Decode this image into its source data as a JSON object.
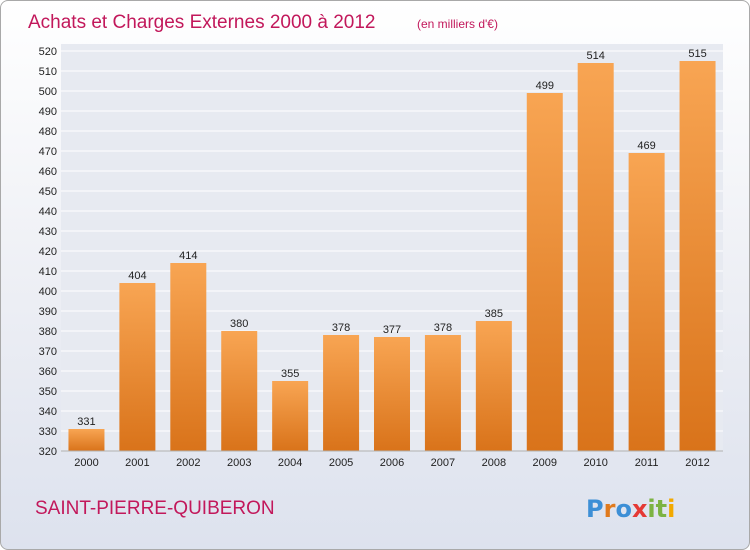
{
  "colors": {
    "title": "#c2185b",
    "bar_light": "#f8a553",
    "bar_dark": "#d9731a",
    "grid": "#ffffff",
    "plot_bg": "#e7eaf1",
    "logo_letters": [
      "#3d8fd6",
      "#e07a1d",
      "#3d8fd6",
      "#e53935",
      "#7cb342",
      "#7cb342",
      "#f2a900"
    ]
  },
  "chart_data": {
    "type": "bar",
    "title": "Achats et Charges Externes 2000 à 2012",
    "subtitle": "(en milliers d'€)",
    "categories": [
      "2000",
      "2001",
      "2002",
      "2003",
      "2004",
      "2005",
      "2006",
      "2007",
      "2008",
      "2009",
      "2010",
      "2011",
      "2012"
    ],
    "values": [
      331,
      404,
      414,
      380,
      355,
      378,
      377,
      378,
      385,
      499,
      514,
      469,
      515
    ],
    "value_labels": [
      "331",
      "404",
      "414",
      "380",
      "355",
      "378",
      "377",
      "378",
      "385",
      "499",
      "514",
      "469",
      "515"
    ],
    "ylim": [
      320,
      520
    ],
    "yticks": [
      "320",
      "330",
      "340",
      "350",
      "360",
      "370",
      "380",
      "390",
      "400",
      "410",
      "420",
      "430",
      "440",
      "450",
      "460",
      "470",
      "480",
      "490",
      "500",
      "510",
      "520"
    ],
    "grid": true,
    "legend": "none"
  },
  "footer": {
    "commune": "SAINT-PIERRE-QUIBERON",
    "logo_letters": [
      "P",
      "r",
      "o",
      "x",
      "i",
      "t",
      "i"
    ]
  }
}
